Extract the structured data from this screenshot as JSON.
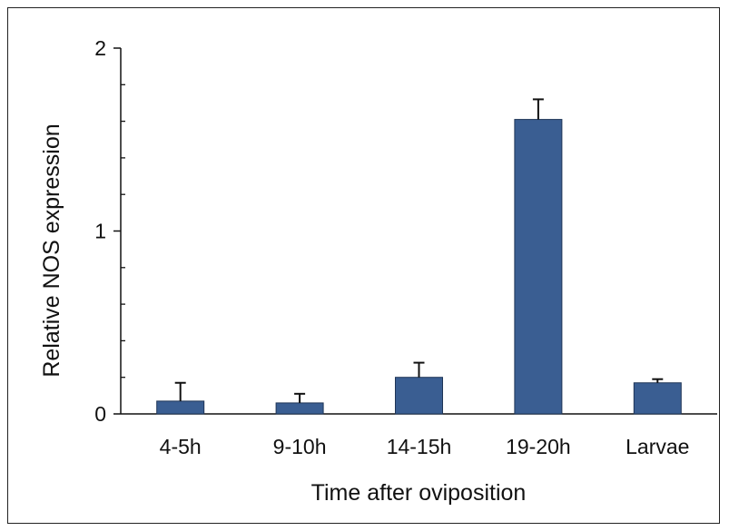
{
  "chart_data": {
    "type": "bar",
    "categories": [
      "4-5h",
      "9-10h",
      "14-15h",
      "19-20h",
      "Larvae"
    ],
    "values": [
      0.07,
      0.06,
      0.2,
      1.61,
      0.17
    ],
    "errors": [
      0.1,
      0.05,
      0.08,
      0.11,
      0.02
    ],
    "xlabel": "Time after oviposition",
    "ylabel": "Relative NOS expression",
    "ylim": [
      0,
      2
    ],
    "yticks": [
      0,
      1,
      2
    ],
    "ytick_labels": [
      "0",
      "1",
      "2"
    ],
    "bar_color": "#3a5e92",
    "grid": false,
    "legend": "none"
  }
}
